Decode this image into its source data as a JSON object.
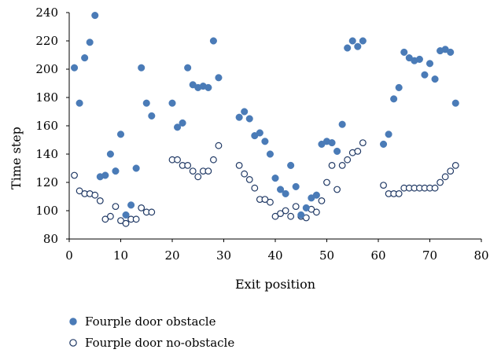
{
  "chart_data": {
    "type": "scatter",
    "title": "",
    "xlabel": "Exit position",
    "ylabel": "Time step",
    "xlim": [
      0,
      80
    ],
    "ylim": [
      80,
      240
    ],
    "xticks": [
      0,
      10,
      20,
      30,
      40,
      50,
      60,
      70,
      80
    ],
    "yticks": [
      80,
      100,
      120,
      140,
      160,
      180,
      200,
      220,
      240
    ],
    "grid": false,
    "legend_position": "bottom-left",
    "series": [
      {
        "name": "Fourple door obstacle",
        "marker": "filled-circle",
        "color": "#4a7bb7",
        "points": [
          [
            1,
            201
          ],
          [
            2,
            176
          ],
          [
            3,
            208
          ],
          [
            4,
            219
          ],
          [
            5,
            238
          ],
          [
            6,
            124
          ],
          [
            7,
            125
          ],
          [
            8,
            140
          ],
          [
            9,
            128
          ],
          [
            10,
            154
          ],
          [
            11,
            97
          ],
          [
            12,
            104
          ],
          [
            13,
            130
          ],
          [
            14,
            201
          ],
          [
            15,
            176
          ],
          [
            16,
            167
          ],
          [
            20,
            176
          ],
          [
            21,
            159
          ],
          [
            22,
            162
          ],
          [
            23,
            201
          ],
          [
            24,
            189
          ],
          [
            25,
            187
          ],
          [
            26,
            188
          ],
          [
            27,
            187
          ],
          [
            28,
            220
          ],
          [
            29,
            194
          ],
          [
            33,
            166
          ],
          [
            34,
            170
          ],
          [
            35,
            165
          ],
          [
            36,
            153
          ],
          [
            37,
            155
          ],
          [
            38,
            149
          ],
          [
            39,
            140
          ],
          [
            40,
            123
          ],
          [
            41,
            115
          ],
          [
            42,
            112
          ],
          [
            43,
            132
          ],
          [
            44,
            117
          ],
          [
            45,
            97
          ],
          [
            46,
            102
          ],
          [
            47,
            109
          ],
          [
            48,
            111
          ],
          [
            49,
            147
          ],
          [
            50,
            149
          ],
          [
            51,
            148
          ],
          [
            52,
            142
          ],
          [
            53,
            161
          ],
          [
            54,
            215
          ],
          [
            55,
            220
          ],
          [
            56,
            216
          ],
          [
            57,
            220
          ],
          [
            61,
            147
          ],
          [
            62,
            154
          ],
          [
            63,
            179
          ],
          [
            64,
            187
          ],
          [
            65,
            212
          ],
          [
            66,
            208
          ],
          [
            67,
            206
          ],
          [
            68,
            207
          ],
          [
            69,
            196
          ],
          [
            70,
            204
          ],
          [
            71,
            193
          ],
          [
            72,
            213
          ],
          [
            73,
            214
          ],
          [
            74,
            212
          ],
          [
            75,
            176
          ]
        ]
      },
      {
        "name": "Fourple door no-obstacle",
        "marker": "open-circle",
        "color": "#1f3864",
        "points": [
          [
            1,
            125
          ],
          [
            2,
            114
          ],
          [
            3,
            112
          ],
          [
            4,
            112
          ],
          [
            5,
            111
          ],
          [
            6,
            107
          ],
          [
            7,
            94
          ],
          [
            8,
            96
          ],
          [
            9,
            103
          ],
          [
            10,
            93
          ],
          [
            11,
            91
          ],
          [
            12,
            94
          ],
          [
            13,
            94
          ],
          [
            14,
            102
          ],
          [
            15,
            99
          ],
          [
            16,
            99
          ],
          [
            20,
            136
          ],
          [
            21,
            136
          ],
          [
            22,
            132
          ],
          [
            23,
            132
          ],
          [
            24,
            128
          ],
          [
            25,
            124
          ],
          [
            26,
            128
          ],
          [
            27,
            128
          ],
          [
            28,
            136
          ],
          [
            29,
            146
          ],
          [
            33,
            132
          ],
          [
            34,
            126
          ],
          [
            35,
            122
          ],
          [
            36,
            116
          ],
          [
            37,
            108
          ],
          [
            38,
            108
          ],
          [
            39,
            106
          ],
          [
            40,
            96
          ],
          [
            41,
            98
          ],
          [
            42,
            100
          ],
          [
            43,
            96
          ],
          [
            44,
            103
          ],
          [
            45,
            96
          ],
          [
            46,
            95
          ],
          [
            47,
            101
          ],
          [
            48,
            99
          ],
          [
            49,
            107
          ],
          [
            50,
            120
          ],
          [
            51,
            132
          ],
          [
            52,
            115
          ],
          [
            53,
            132
          ],
          [
            54,
            136
          ],
          [
            55,
            141
          ],
          [
            56,
            142
          ],
          [
            57,
            148
          ],
          [
            61,
            118
          ],
          [
            62,
            112
          ],
          [
            63,
            112
          ],
          [
            64,
            112
          ],
          [
            65,
            116
          ],
          [
            66,
            116
          ],
          [
            67,
            116
          ],
          [
            68,
            116
          ],
          [
            69,
            116
          ],
          [
            70,
            116
          ],
          [
            71,
            116
          ],
          [
            72,
            120
          ],
          [
            73,
            124
          ],
          [
            74,
            128
          ],
          [
            75,
            132
          ]
        ]
      }
    ]
  }
}
